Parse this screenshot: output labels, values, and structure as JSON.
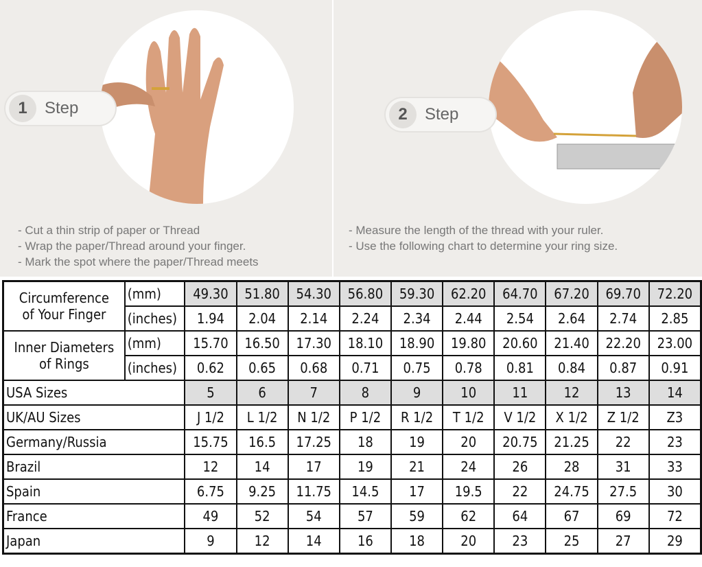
{
  "steps": [
    {
      "number": "1",
      "label": "Step",
      "instructions": [
        "- Cut a thin strip of paper or Thread",
        "- Wrap the paper/Thread around your finger.",
        "- Mark the spot where the paper/Thread meets"
      ]
    },
    {
      "number": "2",
      "label": "Step",
      "instructions": [
        "- Measure the length of the thread with your ruler.",
        "- Use the following chart to determine your ring size."
      ]
    }
  ],
  "table": {
    "circumference": {
      "label": [
        "Circumference",
        "of Your Finger"
      ],
      "mm_label": "(mm)",
      "in_label": "(inches)",
      "mm": [
        "49.30",
        "51.80",
        "54.30",
        "56.80",
        "59.30",
        "62.20",
        "64.70",
        "67.20",
        "69.70",
        "72.20"
      ],
      "inches": [
        "1.94",
        "2.04",
        "2.14",
        "2.24",
        "2.34",
        "2.44",
        "2.54",
        "2.64",
        "2.74",
        "2.85"
      ]
    },
    "diameter": {
      "label": [
        "Inner Diameters",
        "of Rings"
      ],
      "mm_label": "(mm)",
      "in_label": "(inches)",
      "mm": [
        "15.70",
        "16.50",
        "17.30",
        "18.10",
        "18.90",
        "19.80",
        "20.60",
        "21.40",
        "22.20",
        "23.00"
      ],
      "inches": [
        "0.62",
        "0.65",
        "0.68",
        "0.71",
        "0.75",
        "0.78",
        "0.81",
        "0.84",
        "0.87",
        "0.91"
      ]
    },
    "rows": [
      {
        "label": "USA Sizes",
        "shaded": true,
        "values": [
          "5",
          "6",
          "7",
          "8",
          "9",
          "10",
          "11",
          "12",
          "13",
          "14"
        ]
      },
      {
        "label": "UK/AU Sizes",
        "values": [
          "J 1/2",
          "L 1/2",
          "N 1/2",
          "P 1/2",
          "R 1/2",
          "T 1/2",
          "V 1/2",
          "X 1/2",
          "Z 1/2",
          "Z3"
        ]
      },
      {
        "label": "Germany/Russia",
        "values": [
          "15.75",
          "16.5",
          "17.25",
          "18",
          "19",
          "20",
          "20.75",
          "21.25",
          "22",
          "23"
        ]
      },
      {
        "label": "Brazil",
        "values": [
          "12",
          "14",
          "17",
          "19",
          "21",
          "24",
          "26",
          "28",
          "31",
          "33"
        ]
      },
      {
        "label": "Spain",
        "values": [
          "6.75",
          "9.25",
          "11.75",
          "14.5",
          "17",
          "19.5",
          "22",
          "24.75",
          "27.5",
          "30"
        ]
      },
      {
        "label": "France",
        "values": [
          "49",
          "52",
          "54",
          "57",
          "59",
          "62",
          "64",
          "67",
          "69",
          "72"
        ]
      },
      {
        "label": "Japan",
        "values": [
          "9",
          "12",
          "14",
          "16",
          "18",
          "20",
          "23",
          "25",
          "27",
          "29"
        ]
      }
    ]
  },
  "colors": {
    "shade": "#dedede",
    "panel": "#efedea",
    "skin": "#d9a07e"
  }
}
